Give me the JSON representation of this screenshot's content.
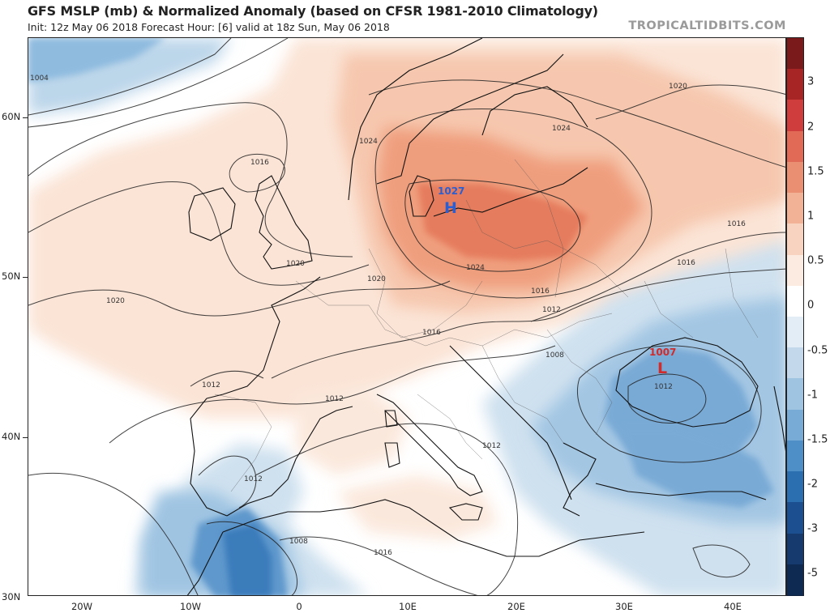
{
  "header": {
    "title": "GFS MSLP (mb) & Normalized Anomaly (based on CFSR 1981-2010 Climatology)",
    "subtitle": "Init: 12z May 06 2018   Forecast Hour: [6]   valid at 18z Sun, May 06 2018",
    "brand": "TROPICALTIDBITS.COM"
  },
  "axes": {
    "lat_labels": [
      "60N",
      "50N",
      "40N",
      "30N"
    ],
    "lon_labels": [
      "20W",
      "10W",
      "0",
      "10E",
      "20E",
      "30E",
      "40E"
    ]
  },
  "pressure_centers": [
    {
      "type": "high",
      "letter": "H",
      "value": "1027",
      "color": "#2b5fd1"
    },
    {
      "type": "low",
      "letter": "L",
      "value": "1007",
      "color": "#d12b2b"
    }
  ],
  "isobar_labels": [
    "1004",
    "1016",
    "1020",
    "1024",
    "1024",
    "1020",
    "1024",
    "1020",
    "1020",
    "1016",
    "1016",
    "1012",
    "1016",
    "1016",
    "1012",
    "1012",
    "1008",
    "1012",
    "1012",
    "1012",
    "1008",
    "1016"
  ],
  "colorbar": {
    "labels": [
      "3",
      "2",
      "1.5",
      "1",
      "0.5",
      "0",
      "-0.5",
      "-1",
      "-1.5",
      "-2",
      "-3",
      "-5"
    ],
    "colors": [
      "#7a1a1a",
      "#a82525",
      "#cf3d3d",
      "#e06a55",
      "#ea8f72",
      "#f2b295",
      "#f8d3bf",
      "#fcebe0",
      "#ffffff",
      "#e2edf6",
      "#c3d9eb",
      "#9fc4e2",
      "#78abd6",
      "#4f8fc7",
      "#2c6fb0",
      "#1c4f8f",
      "#163a6e",
      "#0f2a52"
    ]
  },
  "colors": {
    "coast": "#111111",
    "isobar": "#222222",
    "border": "#333333"
  }
}
